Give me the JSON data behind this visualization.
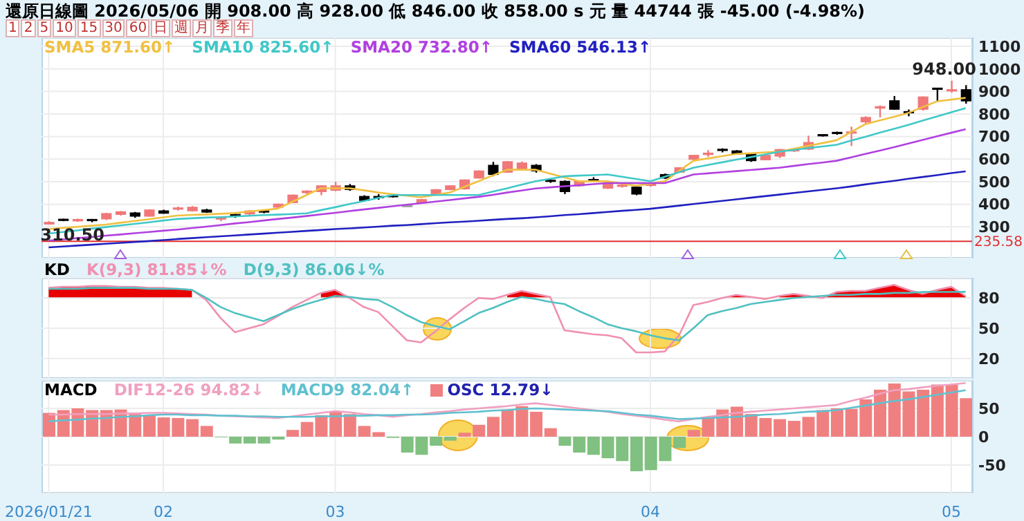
{
  "chart_data": [
    {
      "type": "candlestick",
      "title": "還原日線圖 2026/05/06 開 908.00 高 928.00 低 846.00 收 858.00 s 元 量 44744 張 -45.00 (-4.98%)",
      "categories": [
        "2026/01/21",
        null,
        null,
        null,
        null,
        null,
        null,
        null,
        "02",
        null,
        null,
        null,
        null,
        null,
        null,
        null,
        null,
        null,
        null,
        null,
        "03",
        null,
        null,
        null,
        null,
        null,
        null,
        null,
        null,
        null,
        null,
        null,
        null,
        null,
        null,
        null,
        null,
        null,
        null,
        null,
        null,
        null,
        "04",
        null,
        null,
        null,
        null,
        null,
        null,
        null,
        null,
        null,
        null,
        null,
        null,
        null,
        null,
        null,
        null,
        null,
        null,
        null,
        null,
        "05",
        null
      ],
      "ohlc": [
        [
          312,
          325,
          310.5,
          320
        ],
        [
          331,
          336,
          325,
          330
        ],
        [
          326,
          336,
          322,
          333
        ],
        [
          330,
          335,
          320,
          327
        ],
        [
          335,
          362,
          330,
          359
        ],
        [
          355,
          370,
          350,
          367
        ],
        [
          362,
          366,
          340,
          347
        ],
        [
          347,
          378,
          345,
          375
        ],
        [
          371,
          376,
          358,
          360
        ],
        [
          378,
          390,
          372,
          381
        ],
        [
          371,
          392,
          368,
          387
        ],
        [
          375,
          380,
          362,
          365
        ],
        [
          333,
          340,
          325,
          337
        ],
        [
          352,
          362,
          340,
          350
        ],
        [
          357,
          375,
          352,
          371
        ],
        [
          368,
          375,
          360,
          367
        ],
        [
          387,
          403,
          385,
          401
        ],
        [
          407,
          443,
          405,
          441
        ],
        [
          451,
          462,
          440,
          459
        ],
        [
          456,
          485,
          440,
          482
        ],
        [
          462,
          500,
          458,
          482
        ],
        [
          482,
          490,
          460,
          465
        ],
        [
          435,
          440,
          415,
          417
        ],
        [
          432,
          445,
          420,
          431
        ],
        [
          436,
          440,
          430,
          435
        ],
        [
          392,
          395,
          388,
          391
        ],
        [
          407,
          423,
          405,
          421
        ],
        [
          447,
          467,
          445,
          465
        ],
        [
          465,
          484,
          462,
          482
        ],
        [
          468,
          510,
          465,
          508
        ],
        [
          516,
          550,
          514,
          548
        ],
        [
          573,
          588,
          524,
          532
        ],
        [
          542,
          592,
          540,
          589
        ],
        [
          556,
          590,
          554,
          583
        ],
        [
          573,
          578,
          540,
          548
        ],
        [
          504,
          510,
          495,
          502
        ],
        [
          502,
          506,
          445,
          456
        ],
        [
          482,
          504,
          478,
          502
        ],
        [
          507,
          520,
          500,
          506
        ],
        [
          471,
          498,
          468,
          496
        ],
        [
          480,
          486,
          474,
          482
        ],
        [
          476,
          478,
          440,
          445
        ],
        [
          484,
          490,
          478,
          486
        ],
        [
          532,
          536,
          512,
          516
        ],
        [
          542,
          564,
          540,
          562
        ],
        [
          599,
          619,
          595,
          617
        ],
        [
          620,
          640,
          610,
          627
        ],
        [
          641,
          648,
          630,
          639
        ],
        [
          637,
          640,
          620,
          623
        ],
        [
          623,
          626,
          588,
          593
        ],
        [
          597,
          619,
          595,
          617
        ],
        [
          613,
          645,
          605,
          643
        ],
        [
          638,
          645,
          632,
          639
        ],
        [
          644,
          704,
          640,
          674
        ],
        [
          706,
          710,
          700,
          704
        ],
        [
          716,
          722,
          708,
          714
        ],
        [
          712,
          744,
          658,
          718
        ],
        [
          765,
          790,
          755,
          785
        ],
        [
          826,
          838,
          785,
          833
        ],
        [
          859,
          880,
          820,
          821
        ],
        [
          808,
          820,
          790,
          805
        ],
        [
          821,
          878,
          815,
          876
        ],
        [
          912,
          915,
          855,
          910
        ],
        [
          900,
          948,
          895,
          905
        ],
        [
          908,
          928,
          846,
          858
        ]
      ],
      "colors": [
        "#f07878",
        "#000000",
        "#f07878",
        "#000000",
        "#f07878",
        "#f07878",
        "#000000",
        "#f07878",
        "#000000",
        "#f07878",
        "#f07878",
        "#000000",
        "#f07878",
        "#000000",
        "#f07878",
        "#000000",
        "#f07878",
        "#f07878",
        "#f07878",
        "#f07878",
        "#f07878",
        "#000000",
        "#000000",
        "#000000",
        "#000000",
        "#a0a0a0",
        "#f07878",
        "#f07878",
        "#f07878",
        "#f07878",
        "#f07878",
        "#000000",
        "#f07878",
        "#f07878",
        "#000000",
        "#000000",
        "#000000",
        "#f07878",
        "#000000",
        "#f07878",
        "#f07878",
        "#000000",
        "#f07878",
        "#000000",
        "#f07878",
        "#f07878",
        "#f07878",
        "#000000",
        "#000000",
        "#000000",
        "#f07878",
        "#f07878",
        "#f07878",
        "#f07878",
        "#000000",
        "#000000",
        "#f07878",
        "#f07878",
        "#f07878",
        "#000000",
        "#000000",
        "#f07878",
        "#000000",
        "#f07878",
        "#000000"
      ],
      "series": [
        {
          "name": "SMA5 871.60↑",
          "type": "line",
          "color": "#f0c040",
          "values": [
            290,
            295,
            300,
            305,
            310,
            318,
            326,
            334,
            342,
            350,
            353,
            355,
            358,
            361,
            368,
            374,
            381,
            411,
            441,
            471,
            471,
            471,
            462,
            452,
            445,
            438,
            431,
            442,
            452,
            477,
            502,
            528,
            553,
            553,
            553,
            536,
            519,
            502,
            502,
            502,
            492,
            482,
            492,
            502,
            548,
            593,
            603,
            613,
            623,
            626,
            630,
            633,
            646,
            659,
            671,
            684,
            720,
            755,
            772,
            788,
            805,
            831,
            856,
            864,
            872
          ]
        },
        {
          "name": "SMA10 825.60↑",
          "type": "line",
          "color": "#40c8c8",
          "values": [
            270,
            277,
            284,
            292,
            299,
            306,
            313,
            320,
            328,
            335,
            338,
            341,
            343,
            346,
            349,
            352,
            354,
            357,
            360,
            374,
            387,
            401,
            414,
            428,
            441,
            441,
            441,
            441,
            441,
            441,
            441,
            456,
            471,
            487,
            502,
            513,
            524,
            527,
            529,
            532,
            522,
            512,
            502,
            522,
            542,
            562,
            574,
            586,
            598,
            609,
            621,
            633,
            641,
            649,
            656,
            664,
            682,
            699,
            717,
            734,
            752,
            771,
            789,
            808,
            826
          ]
        },
        {
          "name": "SMA20 732.80↑",
          "type": "line",
          "color": "#b040e0",
          "values": [
            239,
            244,
            250,
            255,
            261,
            266,
            272,
            277,
            283,
            288,
            295,
            301,
            308,
            315,
            321,
            328,
            335,
            341,
            348,
            355,
            362,
            370,
            377,
            384,
            391,
            398,
            405,
            412,
            419,
            426,
            433,
            442,
            452,
            461,
            470,
            475,
            480,
            484,
            489,
            494,
            494,
            494,
            494,
            494,
            513,
            532,
            537,
            542,
            547,
            552,
            557,
            562,
            570,
            578,
            585,
            593,
            608,
            623,
            638,
            653,
            669,
            685,
            701,
            717,
            733
          ]
        },
        {
          "name": "SMA60 546.13↑",
          "type": "line",
          "color": "#2020c0",
          "values": [
            209,
            213,
            217,
            221,
            225,
            229,
            233,
            237,
            241,
            246,
            250,
            254,
            258,
            262,
            266,
            270,
            274,
            278,
            282,
            286,
            290,
            293,
            297,
            301,
            305,
            308,
            312,
            316,
            320,
            323,
            327,
            331,
            335,
            338,
            342,
            347,
            352,
            356,
            361,
            366,
            371,
            375,
            380,
            387,
            394,
            401,
            408,
            415,
            422,
            429,
            436,
            443,
            450,
            457,
            464,
            471,
            479,
            488,
            496,
            504,
            513,
            521,
            529,
            538,
            546
          ]
        }
      ],
      "ylim": [
        160,
        1140
      ],
      "yticks": [
        300,
        400,
        500,
        600,
        700,
        800,
        900,
        1000,
        1100
      ],
      "ref_lines": [
        {
          "axis": "y",
          "value": 235.58,
          "label": "235.58",
          "color": "#e03030"
        }
      ],
      "annotations": [
        "1",
        "2",
        "5",
        "10",
        "15",
        "30",
        "60",
        "日",
        "週",
        "月",
        "季",
        "年",
        {
          "text": "310.50",
          "y": 310.5
        },
        "948.00"
      ],
      "grid": true,
      "legend": "top left",
      "tick_labels": "y"
    },
    {
      "type": "line",
      "title": "KD",
      "categories": [
        "2026/01/21",
        null,
        null,
        null,
        null,
        null,
        null,
        null,
        "02",
        null,
        null,
        null,
        null,
        null,
        null,
        null,
        null,
        null,
        null,
        null,
        "03",
        null,
        null,
        null,
        null,
        null,
        null,
        null,
        null,
        null,
        null,
        null,
        null,
        null,
        null,
        null,
        null,
        null,
        null,
        null,
        null,
        null,
        "04",
        null,
        null,
        null,
        null,
        null,
        null,
        null,
        null,
        null,
        null,
        null,
        null,
        null,
        null,
        null,
        null,
        null,
        null,
        null,
        null,
        "05",
        null
      ],
      "series": [
        {
          "type": "area",
          "color": "#e80000",
          "values": [
            90,
            91,
            91,
            92,
            92,
            91,
            91,
            90,
            90,
            89,
            88,
            null,
            null,
            null,
            null,
            null,
            null,
            null,
            null,
            85,
            88,
            80,
            null,
            null,
            null,
            null,
            null,
            null,
            null,
            null,
            null,
            null,
            83,
            87,
            84,
            81,
            null,
            null,
            null,
            null,
            null,
            null,
            null,
            null,
            null,
            null,
            null,
            80,
            83,
            81,
            null,
            82,
            84,
            82,
            80,
            86,
            87,
            87,
            90,
            93,
            88,
            84,
            88,
            91,
            81.85
          ]
        },
        {
          "name": "K(9,3) 81.85↓%",
          "type": "line",
          "color": "#f090b0",
          "values": [
            90,
            91,
            91,
            92,
            92,
            91,
            91,
            90,
            90,
            89,
            88,
            78,
            60,
            46,
            50,
            54,
            62,
            71,
            78,
            85,
            88,
            80,
            71,
            66,
            52,
            38,
            36,
            47,
            59,
            70,
            80,
            79,
            83,
            87,
            84,
            81,
            48,
            46,
            44,
            43,
            40,
            26,
            26,
            27,
            43,
            73,
            76,
            80,
            83,
            81,
            79,
            82,
            84,
            82,
            80,
            86,
            87,
            87,
            90,
            93,
            88,
            84,
            88,
            91,
            81.85
          ]
        },
        {
          "name": "D(9,3) 86.06↓%",
          "type": "line",
          "color": "#50c0c0",
          "values": [
            89,
            89,
            89,
            90,
            90,
            90,
            90,
            89,
            89,
            89,
            88,
            80,
            71,
            65,
            61,
            57,
            63,
            69,
            74,
            78,
            82,
            81,
            79,
            78,
            71,
            63,
            56,
            52,
            49,
            57,
            65,
            70,
            76,
            81,
            79,
            76,
            74,
            67,
            61,
            54,
            50,
            47,
            43,
            40,
            38,
            50,
            63,
            67,
            70,
            74,
            76,
            78,
            80,
            81,
            82,
            83,
            83,
            84,
            84,
            85,
            85,
            86,
            86,
            86,
            86.06
          ]
        }
      ],
      "ylim": [
        0,
        100
      ],
      "yticks": [
        20,
        50,
        80
      ],
      "ref_lines": [
        {
          "axis": "y",
          "value": 80,
          "color": "#e8e8e8"
        }
      ],
      "grid": true,
      "legend": "top left",
      "tick_labels": "y"
    },
    {
      "type": "bar",
      "title": "MACD",
      "categories": [
        "2026/01/21",
        null,
        null,
        null,
        null,
        null,
        null,
        null,
        "02",
        null,
        null,
        null,
        null,
        null,
        null,
        null,
        null,
        null,
        null,
        null,
        "03",
        null,
        null,
        null,
        null,
        null,
        null,
        null,
        null,
        null,
        null,
        null,
        null,
        null,
        null,
        null,
        null,
        null,
        null,
        null,
        null,
        null,
        "04",
        null,
        null,
        null,
        null,
        null,
        null,
        null,
        null,
        null,
        null,
        null,
        null,
        null,
        null,
        null,
        null,
        null,
        null,
        null,
        null,
        "05",
        null
      ],
      "series": [
        {
          "name": "DIF12-26 94.82↓",
          "type": "line",
          "color": "#f0a0c0",
          "values": [
            39,
            39,
            40,
            40,
            40,
            41,
            41,
            42,
            42,
            41,
            40,
            39,
            37,
            36,
            35,
            34,
            33,
            36,
            39,
            42,
            45,
            43,
            40,
            38,
            35,
            38,
            40,
            43,
            45,
            48,
            50,
            52,
            54,
            57,
            59,
            56,
            53,
            50,
            47,
            44,
            40,
            37,
            34,
            30,
            27,
            31,
            35,
            38,
            42,
            44,
            46,
            48,
            50,
            52,
            54,
            56,
            63,
            69,
            76,
            82,
            84,
            87,
            90,
            92,
            94.82
          ]
        },
        {
          "name": "MACD9 82.04↑",
          "type": "line",
          "color": "#60c0d0",
          "values": [
            27,
            29,
            30,
            32,
            33,
            35,
            36,
            38,
            39,
            39,
            38,
            38,
            37,
            37,
            36,
            36,
            35,
            35,
            35,
            36,
            36,
            37,
            37,
            38,
            38,
            39,
            39,
            40,
            42,
            43,
            44,
            46,
            47,
            49,
            50,
            49,
            48,
            47,
            46,
            45,
            42,
            39,
            37,
            34,
            31,
            32,
            33,
            34,
            35,
            37,
            39,
            40,
            42,
            44,
            45,
            47,
            51,
            55,
            59,
            63,
            66,
            70,
            74,
            78,
            82.04
          ]
        },
        {
          "name": "OSC 12.79↓",
          "type": "bar",
          "values": [
            42,
            47,
            50,
            47,
            47,
            48,
            40,
            38,
            34,
            33,
            31,
            19,
            -1,
            -12,
            -12,
            -12,
            -5,
            12,
            26,
            38,
            44,
            40,
            19,
            8,
            -2,
            -28,
            -32,
            -16,
            -7,
            7,
            21,
            35,
            48,
            54,
            44,
            15,
            -16,
            -28,
            -32,
            -38,
            -43,
            -61,
            -59,
            -43,
            -20,
            12,
            35,
            48,
            53,
            40,
            33,
            31,
            28,
            35,
            47,
            50,
            49,
            66,
            83,
            94,
            80,
            83,
            92,
            92,
            68
          ],
          "colors": [
            "#f08080",
            "#f08080",
            "#f08080",
            "#f08080",
            "#f08080",
            "#f08080",
            "#f08080",
            "#f08080",
            "#f08080",
            "#f08080",
            "#f08080",
            "#f08080",
            "#80c080",
            "#80c080",
            "#80c080",
            "#80c080",
            "#80c080",
            "#f08080",
            "#f08080",
            "#f08080",
            "#f08080",
            "#f08080",
            "#f08080",
            "#f08080",
            "#80c080",
            "#80c080",
            "#80c080",
            "#80c080",
            "#80c080",
            "#f08080",
            "#f08080",
            "#f08080",
            "#f08080",
            "#f08080",
            "#f08080",
            "#f08080",
            "#80c080",
            "#80c080",
            "#80c080",
            "#80c080",
            "#80c080",
            "#80c080",
            "#80c080",
            "#80c080",
            "#80c080",
            "#f08080",
            "#f08080",
            "#f08080",
            "#f08080",
            "#f08080",
            "#f08080",
            "#f08080",
            "#f08080",
            "#f08080",
            "#f08080",
            "#f08080",
            "#f08080",
            "#f08080",
            "#f08080",
            "#f08080",
            "#f08080",
            "#f08080",
            "#f08080",
            "#f08080",
            "#f08080"
          ]
        }
      ],
      "ylim": [
        -100,
        100
      ],
      "yticks": [
        -50,
        0,
        50
      ],
      "grid": true,
      "legend": "top left"
    }
  ]
}
